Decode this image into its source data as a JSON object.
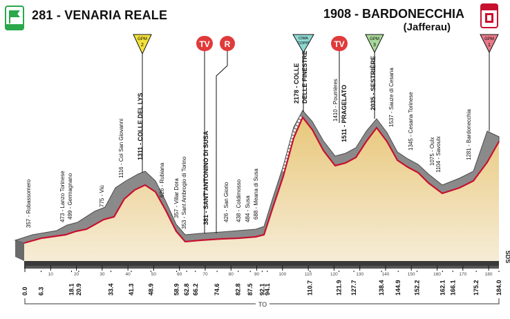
{
  "start": {
    "altitude_name": "281 - VENARIA REALE",
    "badge": "PARTENZA"
  },
  "finish": {
    "altitude_name": "1908 - BARDONECCHIA",
    "sub": "(Jafferau)",
    "badge": "ARRIVO"
  },
  "markers": {
    "gpm2": {
      "label": "GPM",
      "num": "2"
    },
    "gpm3": {
      "label": "GPM",
      "num": "3"
    },
    "gpm1": {
      "label": "GPM",
      "num": "1"
    },
    "cima_coppi": {
      "line1": "CIMA",
      "line2": "COPPI"
    },
    "tv1": "TV",
    "tv2": "TV",
    "r": "R"
  },
  "km_axis": {
    "ticks": [
      "0",
      "10",
      "20",
      "30",
      "40",
      "50",
      "60",
      "70",
      "80",
      "90",
      "100",
      "110",
      "120",
      "130",
      "140",
      "150",
      "160",
      "170",
      "180"
    ],
    "unit": "TO",
    "logo": "SDS"
  },
  "km_labels": [
    "0.0",
    "6.3",
    "18.1",
    "20.9",
    "33.4",
    "41.3",
    "48.9",
    "58.9",
    "62.8",
    "66.2",
    "74.6",
    "82.8",
    "87.5",
    "92.1",
    "94.1",
    "110.7",
    "121.9",
    "127.7",
    "138.4",
    "144.9",
    "152.2",
    "162.1",
    "166.1",
    "175.2",
    "184.0"
  ],
  "place_labels": [
    {
      "text": "357 - Robassomero",
      "bold": false
    },
    {
      "text": "473 - Lanzo Torinese",
      "bold": false
    },
    {
      "text": "499 - Germagnano",
      "bold": false
    },
    {
      "text": "775 - Viù",
      "bold": false
    },
    {
      "text": "1116 - Col San Giovanni",
      "bold": false
    },
    {
      "text": "1311 - COLLE DEL LYS",
      "bold": true
    },
    {
      "text": "626 - Rubiana",
      "bold": false
    },
    {
      "text": "357 - Villar Dora",
      "bold": false
    },
    {
      "text": "353 - Sant Ambrogio di Torino",
      "bold": false
    },
    {
      "text": "381 - SANT'ANTONINO DI SUSA",
      "bold": true
    },
    {
      "text": "426 - San Giorio",
      "bold": false
    },
    {
      "text": "438 - Coldimosso",
      "bold": false
    },
    {
      "text": "484 - Susa",
      "bold": false
    },
    {
      "text": "688 - Meana di Susa",
      "bold": false
    },
    {
      "text": "2178 - COLLE",
      "bold": true
    },
    {
      "text": "DELLE FINESTRE",
      "bold": true
    },
    {
      "text": "1410 - Pourrières",
      "bold": false
    },
    {
      "text": "1511 - PRAGELATO",
      "bold": true
    },
    {
      "text": "2035 - SESTRIÈRE",
      "bold": true
    },
    {
      "text": "1537 - Sauze di Cesana",
      "bold": false
    },
    {
      "text": "1345 - Cesana Torinese",
      "bold": false
    },
    {
      "text": "1075 - Oulx",
      "bold": false
    },
    {
      "text": "1104 - Savoulx",
      "bold": false
    },
    {
      "text": "1281 - Bardonecchia",
      "bold": false
    }
  ],
  "colors": {
    "route_red": "#c8102e",
    "profile_gray": "#8a8a8a",
    "profile_dark": "#4a4a4a",
    "fill_top": "#e8c77a",
    "fill_bottom": "#f6ecd6",
    "tv_red": "#e03a3a",
    "gpm_yellow": "#f3e23b",
    "cima_cyan": "#8fd8d2",
    "gpm_green": "#a9d99a",
    "start_green": "#2aa84a"
  }
}
